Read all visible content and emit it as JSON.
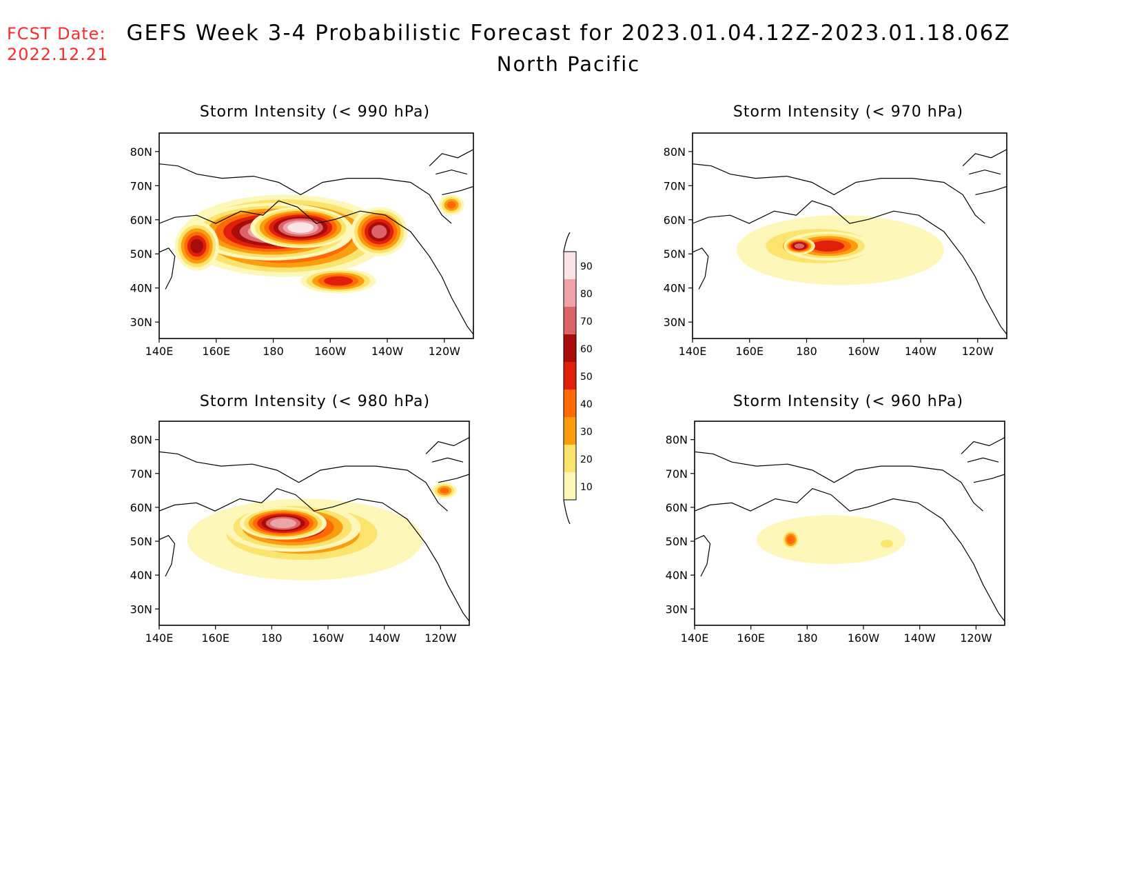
{
  "header": {
    "fcst_label": "FCST Date:",
    "fcst_date": "2022.12.21",
    "title": "GEFS Week 3-4 Probabilistic Forecast for 2023.01.04.12Z-2023.01.18.06Z",
    "subtitle": "North Pacific"
  },
  "axes": {
    "lon_ticks": [
      "140E",
      "160E",
      "180",
      "160W",
      "140W",
      "120W"
    ],
    "lat_ticks": [
      "80N",
      "70N",
      "60N",
      "50N",
      "40N",
      "30N"
    ]
  },
  "panels": [
    {
      "id": "p990",
      "title": "Storm Intensity (< 990 hPa)",
      "threshold_hPa": 990
    },
    {
      "id": "p970",
      "title": "Storm Intensity (< 970 hPa)",
      "threshold_hPa": 970
    },
    {
      "id": "p980",
      "title": "Storm Intensity (< 980 hPa)",
      "threshold_hPa": 980
    },
    {
      "id": "p960",
      "title": "Storm Intensity (< 960 hPa)",
      "threshold_hPa": 960
    }
  ],
  "colorbar": {
    "levels": [
      "90",
      "80",
      "70",
      "60",
      "50",
      "40",
      "30",
      "20",
      "10"
    ],
    "colors": [
      "#fbe4e6",
      "#eea3a8",
      "#dc6468",
      "#a60d0b",
      "#e01f0b",
      "#ff6a09",
      "#fa9e10",
      "#fbe46e",
      "#fdf8ba"
    ]
  }
}
